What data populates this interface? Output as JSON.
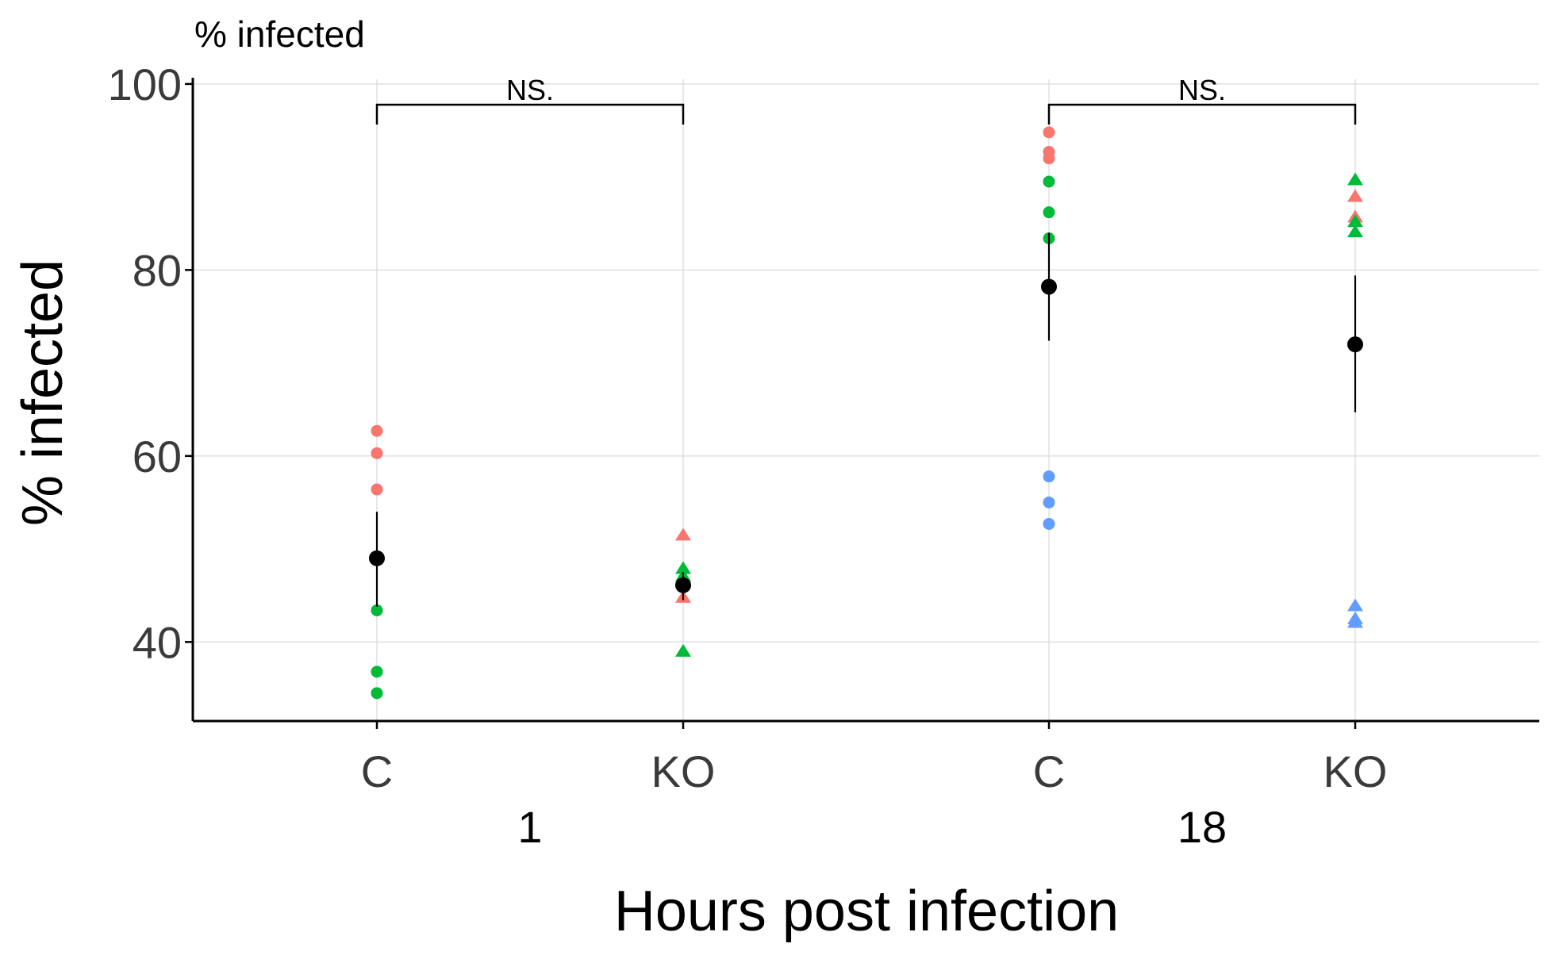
{
  "chart_data": {
    "type": "scatter",
    "title": "% infected",
    "xlabel": "Hours post infection",
    "ylabel": "% infected",
    "ylim": [
      31.5,
      100.5
    ],
    "yticks": [
      40,
      60,
      80,
      100
    ],
    "grid": true,
    "groups": [
      {
        "label": "1",
        "categories": [
          "C",
          "KO"
        ]
      },
      {
        "label": "18",
        "categories": [
          "C",
          "KO"
        ]
      }
    ],
    "point_colors": [
      "#F8766D",
      "#00BA38",
      "#619CFF"
    ],
    "mean_color": "#000000",
    "series": [
      {
        "hours": "1",
        "genotype": "C",
        "marker": "circle",
        "points": [
          {
            "y": 62.7,
            "color": "#F8766D"
          },
          {
            "y": 60.3,
            "color": "#F8766D"
          },
          {
            "y": 56.4,
            "color": "#F8766D"
          },
          {
            "y": 43.4,
            "color": "#00BA38"
          },
          {
            "y": 36.8,
            "color": "#00BA38"
          },
          {
            "y": 34.5,
            "color": "#00BA38"
          }
        ],
        "mean": 49.0,
        "error_low": 43.8,
        "error_high": 54.0
      },
      {
        "hours": "1",
        "genotype": "KO",
        "marker": "triangle",
        "points": [
          {
            "y": 51.6,
            "color": "#F8766D"
          },
          {
            "y": 47.0,
            "color": "#F8766D"
          },
          {
            "y": 44.9,
            "color": "#F8766D"
          },
          {
            "y": 48.0,
            "color": "#00BA38"
          },
          {
            "y": 47.2,
            "color": "#00BA38"
          },
          {
            "y": 39.1,
            "color": "#00BA38"
          }
        ],
        "mean": 46.1,
        "error_low": 44.5,
        "error_high": 47.5
      },
      {
        "hours": "18",
        "genotype": "C",
        "marker": "circle",
        "points": [
          {
            "y": 94.8,
            "color": "#F8766D"
          },
          {
            "y": 92.7,
            "color": "#F8766D"
          },
          {
            "y": 92.0,
            "color": "#F8766D"
          },
          {
            "y": 89.5,
            "color": "#00BA38"
          },
          {
            "y": 86.2,
            "color": "#00BA38"
          },
          {
            "y": 83.4,
            "color": "#00BA38"
          },
          {
            "y": 57.8,
            "color": "#619CFF"
          },
          {
            "y": 55.0,
            "color": "#619CFF"
          },
          {
            "y": 52.7,
            "color": "#619CFF"
          }
        ],
        "mean": 78.2,
        "error_low": 72.4,
        "error_high": 84.0
      },
      {
        "hours": "18",
        "genotype": "KO",
        "marker": "triangle",
        "points": [
          {
            "y": 88.0,
            "color": "#F8766D"
          },
          {
            "y": 85.8,
            "color": "#F8766D"
          },
          {
            "y": 89.8,
            "color": "#00BA38"
          },
          {
            "y": 85.3,
            "color": "#00BA38"
          },
          {
            "y": 84.2,
            "color": "#00BA38"
          },
          {
            "y": 44.0,
            "color": "#619CFF"
          },
          {
            "y": 42.6,
            "color": "#619CFF"
          },
          {
            "y": 42.2,
            "color": "#619CFF"
          }
        ],
        "mean": 72.0,
        "error_low": 64.7,
        "error_high": 79.4
      }
    ],
    "annotations": [
      {
        "text": "NS.",
        "group": "1"
      },
      {
        "text": "NS.",
        "group": "18"
      }
    ]
  }
}
